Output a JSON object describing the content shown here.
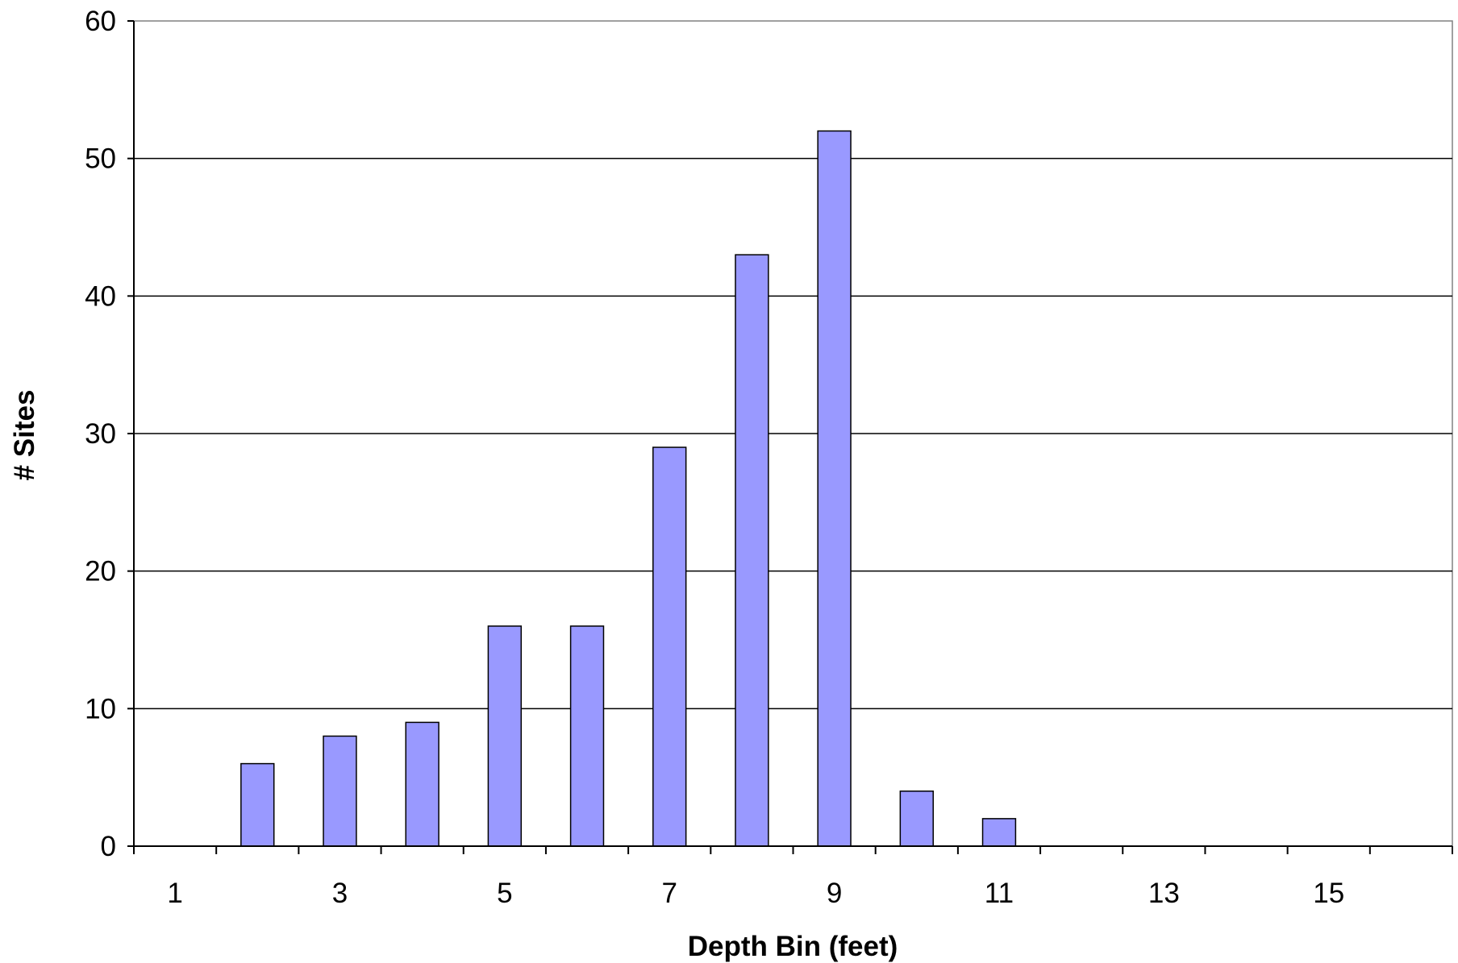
{
  "chart_data": {
    "type": "bar",
    "categories": [
      1,
      2,
      3,
      4,
      5,
      6,
      7,
      8,
      9,
      10,
      11,
      12,
      13,
      14,
      15,
      16
    ],
    "x_tick_labels": [
      "1",
      "3",
      "5",
      "7",
      "9",
      "11",
      "13",
      "15"
    ],
    "values": [
      0,
      6,
      8,
      9,
      16,
      16,
      29,
      43,
      52,
      4,
      2,
      0,
      0,
      0,
      0,
      0
    ],
    "title": "",
    "xlabel": "Depth Bin (feet)",
    "ylabel": "# Sites",
    "ylim": [
      0,
      60
    ],
    "yticks": [
      0,
      10,
      20,
      30,
      40,
      50,
      60
    ],
    "grid": true,
    "legend": "none",
    "colors": {
      "bar_fill": "#9999ff",
      "bar_stroke": "#000000",
      "grid": "#000000",
      "axis": "#000000",
      "plot_background": "#ffffff",
      "plot_border": "#808080"
    }
  }
}
